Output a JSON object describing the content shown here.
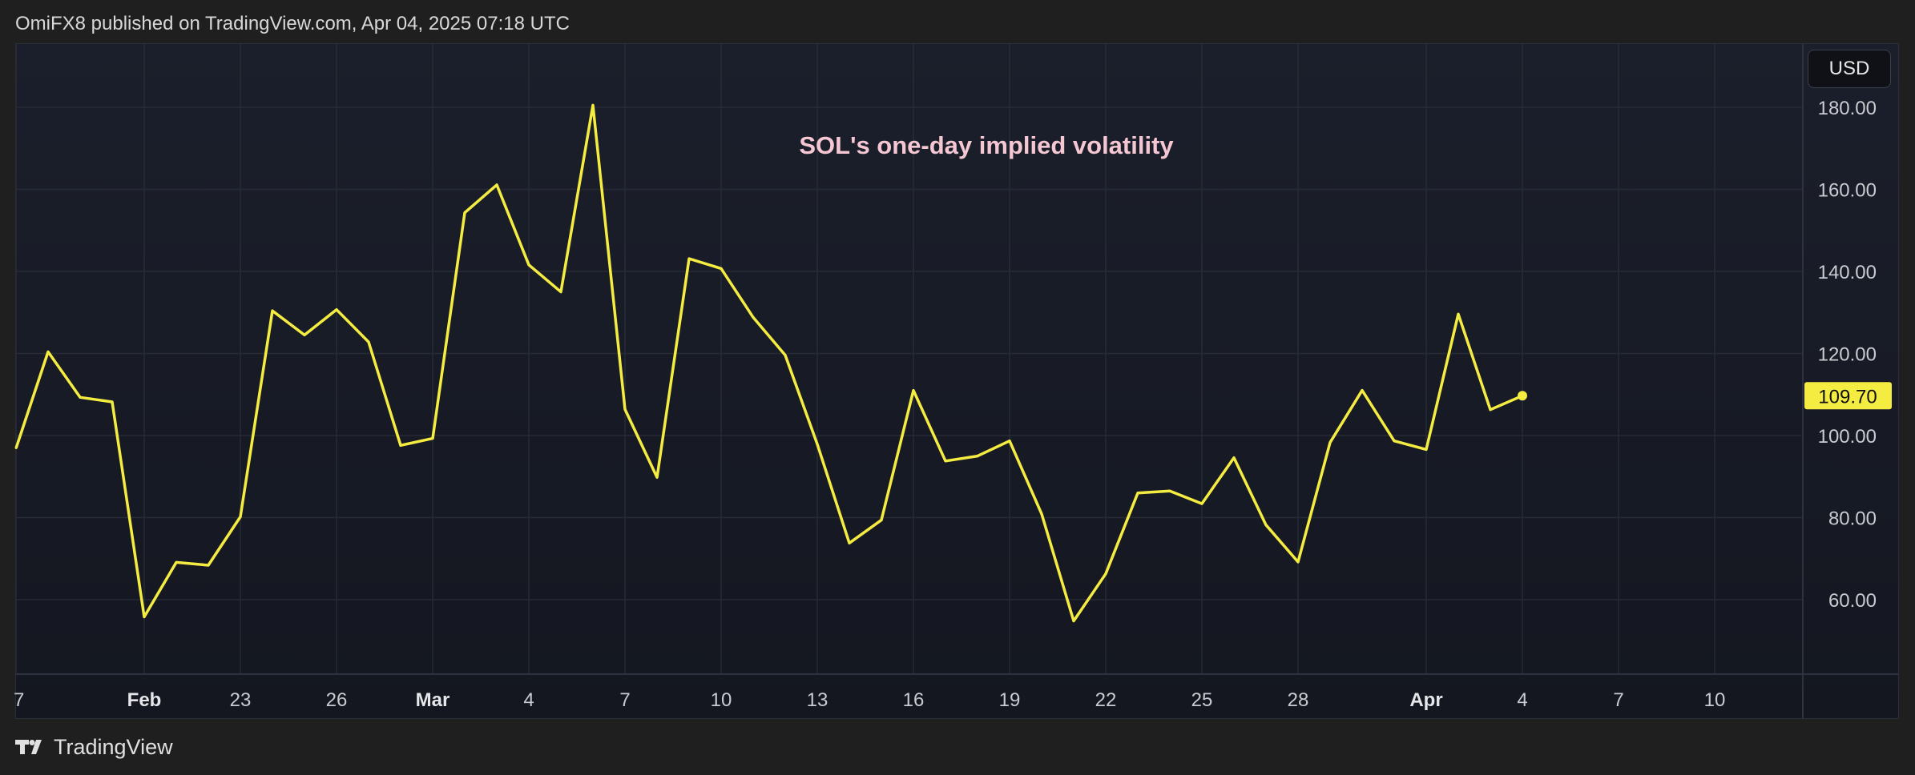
{
  "header": {
    "publish_info": "OmiFX8 published on TradingView.com, Apr 04, 2025 07:18 UTC"
  },
  "footer": {
    "brand_label": "TradingView"
  },
  "currency": "USD",
  "colors": {
    "line": "#f5ec42",
    "title": "#f4c7d3",
    "price_tag_bg": "#f5ec42",
    "grid": "#272b36"
  },
  "chart_data": {
    "type": "line",
    "title": "SOL's one-day implied volatility",
    "y_ticks": [
      "60.00",
      "80.00",
      "100.00",
      "120.00",
      "140.00",
      "160.00",
      "180.00"
    ],
    "ylim": [
      42,
      195
    ],
    "x_ticks": [
      {
        "label": "7",
        "date": "2025-01-28",
        "bold": false
      },
      {
        "label": "Feb",
        "date": "2025-02-01",
        "bold": true
      },
      {
        "label": "23",
        "date": "2025-02-04",
        "bold": false
      },
      {
        "label": "26",
        "date": "2025-02-07",
        "bold": false
      },
      {
        "label": "Mar",
        "date": "2025-02-10",
        "bold": true
      },
      {
        "label": "4",
        "date": "2025-02-13",
        "bold": false
      },
      {
        "label": "7",
        "date": "2025-02-16",
        "bold": false
      },
      {
        "label": "10",
        "date": "2025-02-19",
        "bold": false
      },
      {
        "label": "13",
        "date": "2025-02-22",
        "bold": false
      },
      {
        "label": "16",
        "date": "2025-02-25",
        "bold": false
      },
      {
        "label": "19",
        "date": "2025-02-28",
        "bold": false
      },
      {
        "label": "22",
        "date": "2025-03-03",
        "bold": false
      },
      {
        "label": "25",
        "date": "2025-03-06",
        "bold": false
      },
      {
        "label": "28",
        "date": "2025-03-09",
        "bold": false
      },
      {
        "label": "Apr",
        "date": "2025-03-13",
        "bold": true
      },
      {
        "label": "4",
        "date": "2025-03-16",
        "bold": false
      },
      {
        "label": "7",
        "date": "2025-03-19",
        "bold": false
      },
      {
        "label": "10",
        "date": "2025-03-22",
        "bold": false
      }
    ],
    "x": [
      "2025-01-28",
      "2025-01-29",
      "2025-01-30",
      "2025-01-31",
      "2025-02-01",
      "2025-02-02",
      "2025-02-03",
      "2025-02-04",
      "2025-02-05",
      "2025-02-06",
      "2025-02-07",
      "2025-02-08",
      "2025-02-09",
      "2025-02-10",
      "2025-02-11",
      "2025-02-12",
      "2025-02-13",
      "2025-02-14",
      "2025-02-15",
      "2025-02-16",
      "2025-02-17",
      "2025-02-18",
      "2025-02-19",
      "2025-02-20",
      "2025-02-21",
      "2025-02-22",
      "2025-02-23",
      "2025-02-24",
      "2025-02-25",
      "2025-02-26",
      "2025-02-27",
      "2025-02-28",
      "2025-03-01",
      "2025-03-02",
      "2025-03-03",
      "2025-03-04",
      "2025-03-05",
      "2025-03-06",
      "2025-03-07",
      "2025-03-08",
      "2025-03-09",
      "2025-03-10",
      "2025-03-11",
      "2025-03-12",
      "2025-03-13",
      "2025-03-14",
      "2025-03-15",
      "2025-03-16"
    ],
    "values": [
      96.9,
      120.4,
      109.3,
      108.2,
      55.8,
      69.1,
      68.4,
      80.2,
      130.4,
      124.5,
      130.7,
      122.8,
      97.6,
      99.3,
      154.3,
      161.1,
      141.6,
      135.0,
      180.5,
      106.4,
      89.8,
      143.1,
      140.7,
      128.8,
      119.6,
      97.9,
      73.8,
      79.4,
      111.0,
      93.8,
      95.0,
      98.7,
      80.9,
      54.8,
      66.3,
      86.0,
      86.5,
      83.4,
      94.6,
      78.2,
      69.2,
      98.3,
      111.0,
      98.7,
      96.6,
      129.6,
      106.3,
      109.7
    ],
    "last_value_label": "109.70"
  }
}
